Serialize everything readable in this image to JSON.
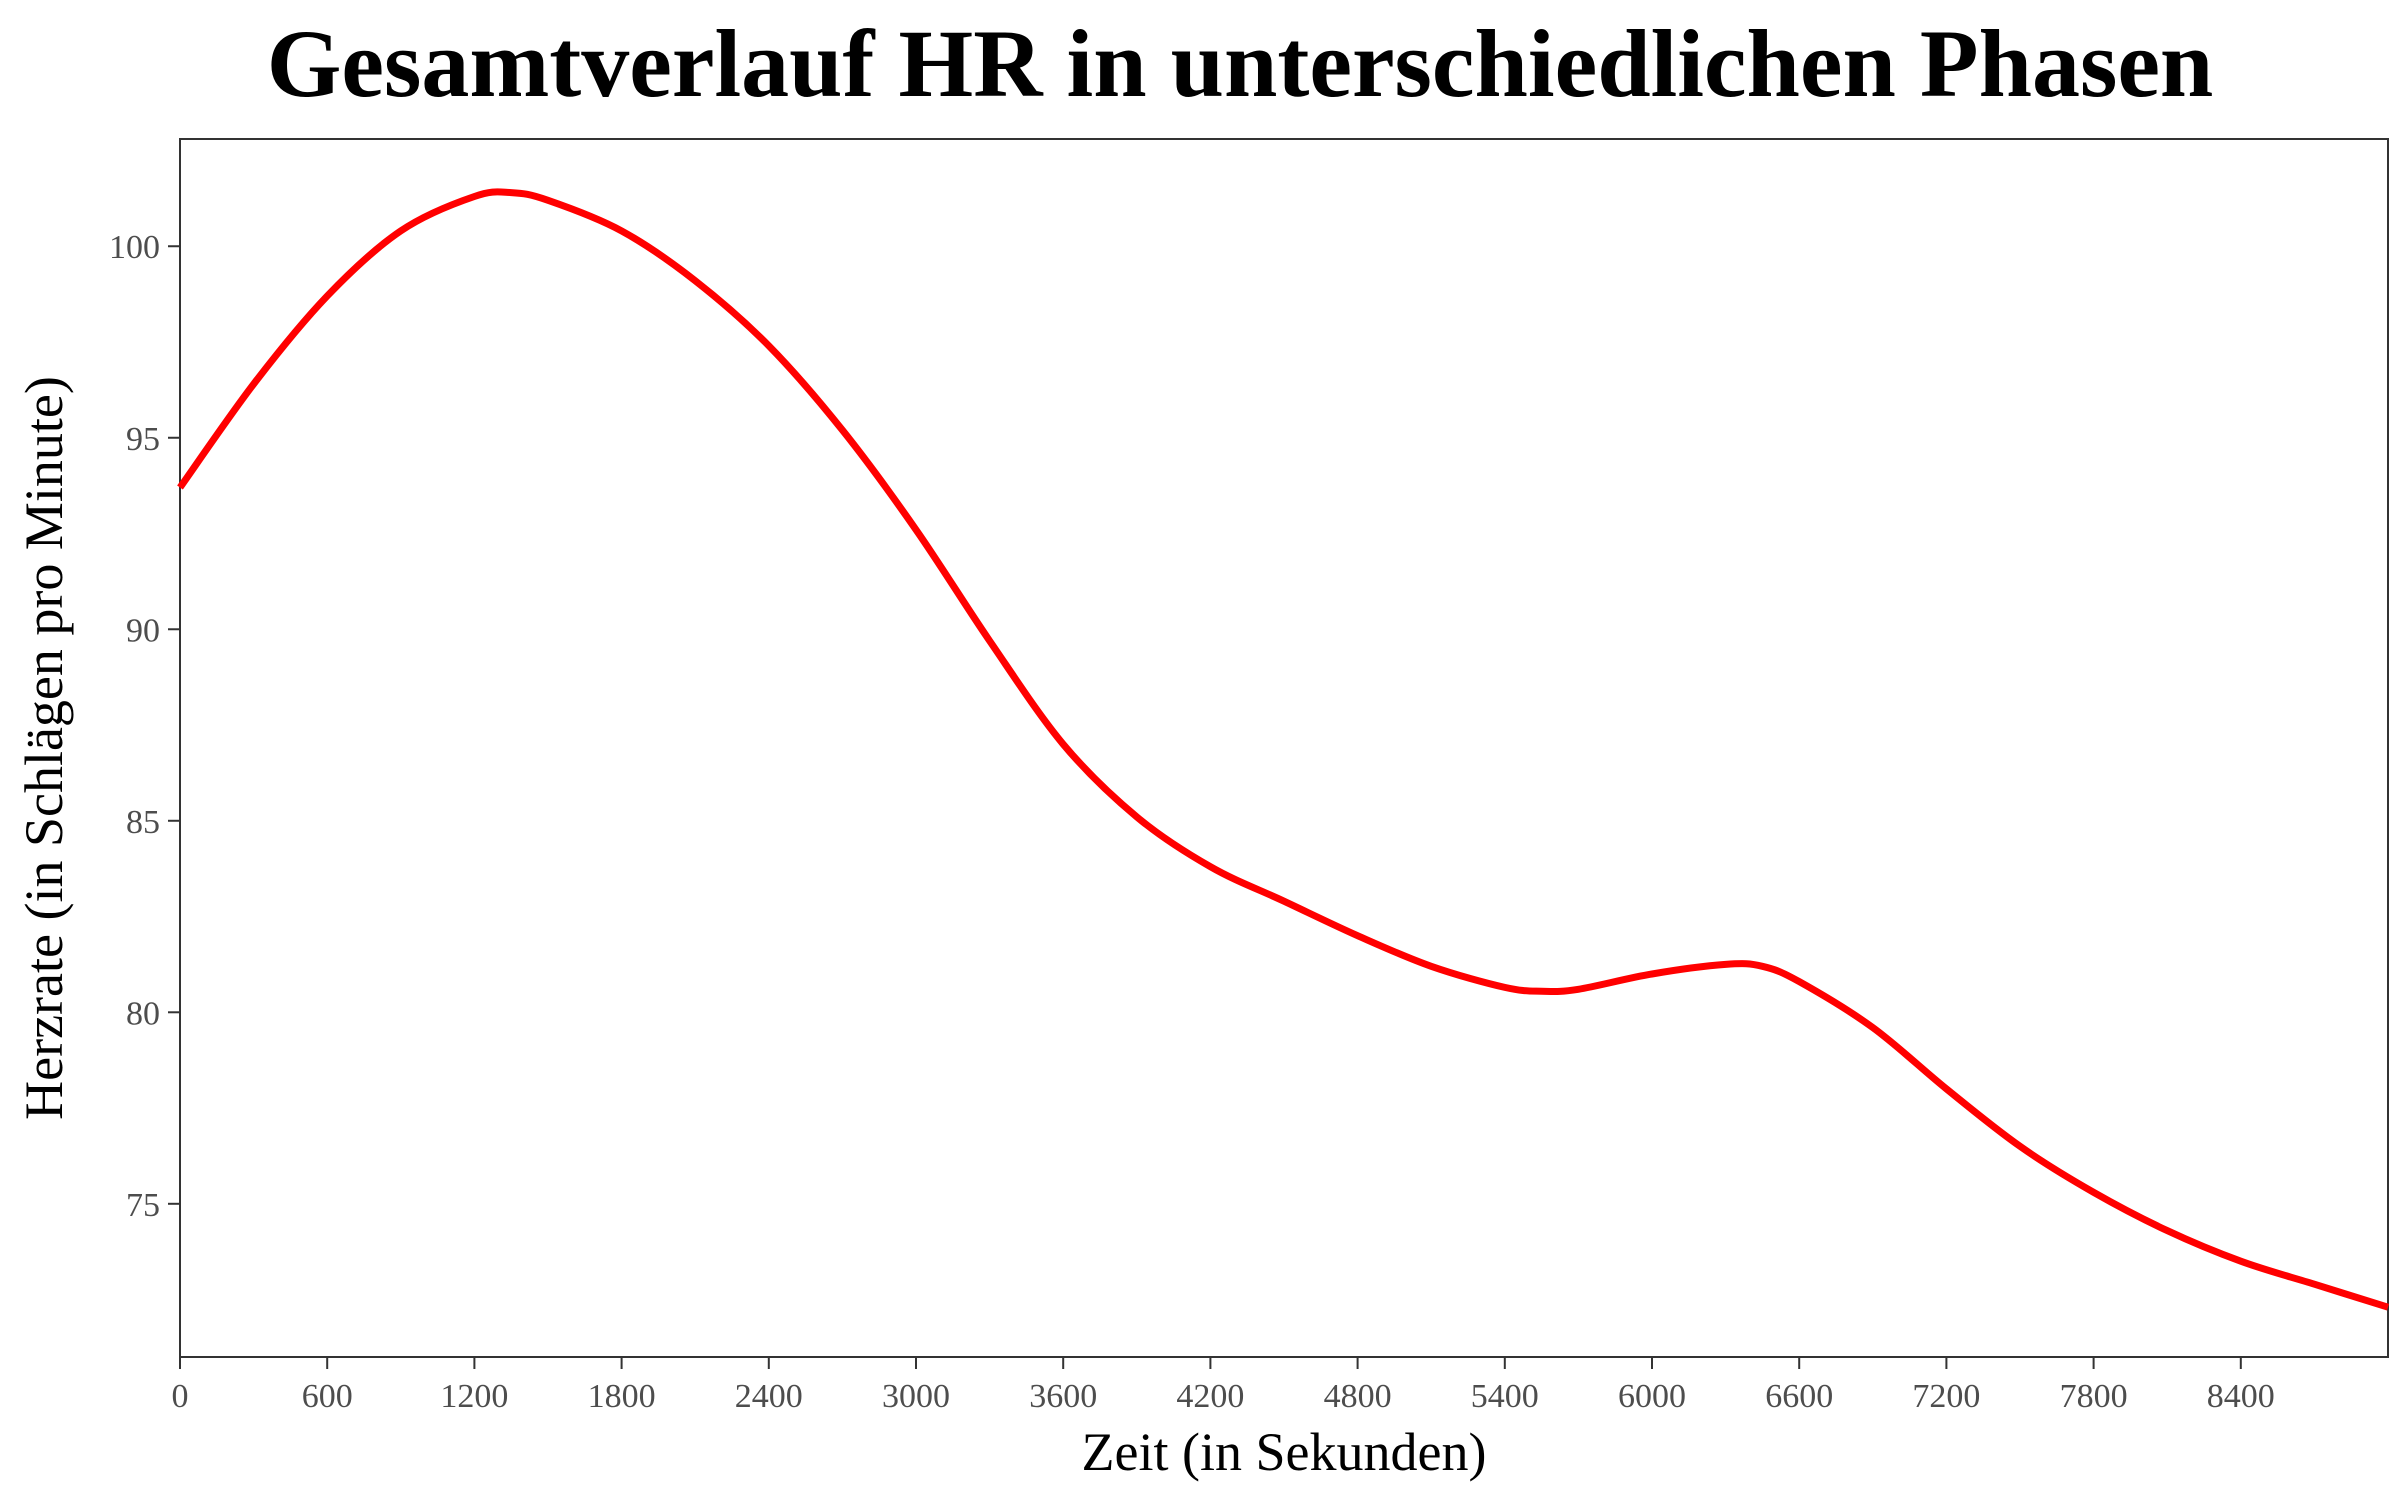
{
  "chart_data": {
    "type": "line",
    "title": "Gesamtverlauf HR in unterschiedlichen Phasen",
    "xlabel": "Zeit (in Sekunden)",
    "ylabel": "Herzrate (in Schlägen pro Minute)",
    "xlim": [
      0,
      9000
    ],
    "ylim": [
      71.0,
      102.8
    ],
    "x_ticks": [
      0,
      600,
      1200,
      1800,
      2400,
      3000,
      3600,
      4200,
      4800,
      5400,
      6000,
      6600,
      7200,
      7800,
      8400
    ],
    "x_tick_labels": [
      "0",
      "600",
      "1200",
      "1800",
      "2400",
      "3000",
      "3600",
      "4200",
      "4800",
      "5400",
      "6000",
      "6600",
      "7200",
      "7800",
      "8400"
    ],
    "y_ticks": [
      75,
      80,
      85,
      90,
      95,
      100
    ],
    "y_tick_labels": [
      "75",
      "80",
      "85",
      "90",
      "95",
      "100"
    ],
    "grid": false,
    "colors": {
      "line": "#ff0000",
      "axis": "#333333",
      "tick_text": "#4d4d4d"
    },
    "series": [
      {
        "name": "HR",
        "x": [
          0,
          300,
          600,
          900,
          1200,
          1350,
          1500,
          1800,
          2100,
          2400,
          2700,
          3000,
          3300,
          3600,
          3900,
          4200,
          4500,
          4800,
          5100,
          5400,
          5550,
          5700,
          6000,
          6300,
          6450,
          6600,
          6900,
          7200,
          7500,
          7800,
          8100,
          8400,
          8700,
          9000
        ],
        "y": [
          93.7,
          96.4,
          98.7,
          100.4,
          101.3,
          101.4,
          101.2,
          100.4,
          99.1,
          97.4,
          95.2,
          92.6,
          89.7,
          87.0,
          85.1,
          83.8,
          82.9,
          82.0,
          81.2,
          80.65,
          80.55,
          80.6,
          81.0,
          81.25,
          81.2,
          80.8,
          79.6,
          78.0,
          76.5,
          75.3,
          74.3,
          73.5,
          72.9,
          72.3
        ]
      }
    ]
  }
}
